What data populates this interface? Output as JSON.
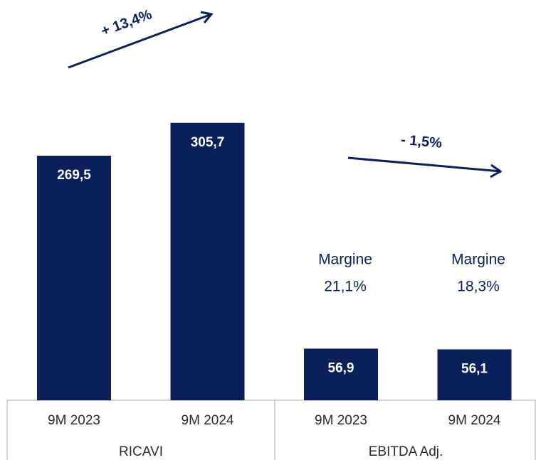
{
  "chart_data": {
    "type": "bar",
    "categories": [
      "9M 2023",
      "9M 2024",
      "9M 2023",
      "9M 2024"
    ],
    "groups": [
      "RICAVI",
      "EBITDA Adj."
    ],
    "values": [
      269.5,
      305.7,
      56.9,
      56.1
    ],
    "value_labels": [
      "269,5",
      "305,7",
      "56,9",
      "56,1"
    ],
    "color": "#0b1f5b",
    "annotations": {
      "growth": [
        "+ 13,4%",
        "- 1,5%"
      ],
      "margins": [
        [
          "Margine",
          "21,1%"
        ],
        [
          "Margine",
          "18,3%"
        ]
      ]
    }
  }
}
